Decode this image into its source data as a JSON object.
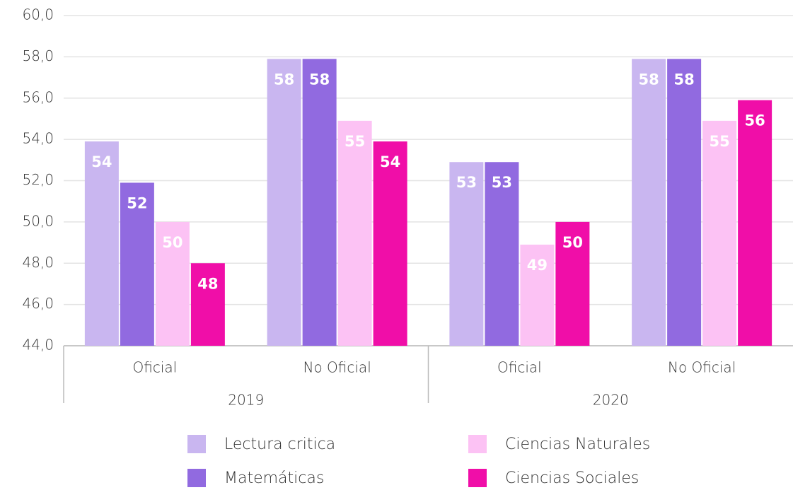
{
  "chart_data": {
    "type": "bar",
    "categories": [
      "Oficial",
      "No Oficial",
      "Oficial",
      "No Oficial"
    ],
    "group_labels": [
      "2019",
      "2020"
    ],
    "series": [
      {
        "name": "Lectura critica",
        "color": "#c9b6f0",
        "values": [
          53.9,
          57.9,
          52.9,
          57.9
        ],
        "value_labels": [
          "54",
          "58",
          "53",
          "58"
        ]
      },
      {
        "name": "Matemáticas",
        "color": "#916ae0",
        "values": [
          51.9,
          57.9,
          52.9,
          57.9
        ],
        "value_labels": [
          "52",
          "58",
          "53",
          "58"
        ]
      },
      {
        "name": "Ciencias Naturales",
        "color": "#fcc2f4",
        "values": [
          50.0,
          54.9,
          48.9,
          54.9
        ],
        "value_labels": [
          "50",
          "55",
          "49",
          "55"
        ]
      },
      {
        "name": "Ciencias Sociales",
        "color": "#f00ea8",
        "values": [
          48.0,
          53.9,
          50.0,
          55.9
        ],
        "value_labels": [
          "48",
          "54",
          "50",
          "56"
        ]
      }
    ],
    "ylim": [
      44,
      60
    ],
    "yticks": [
      {
        "value": 44,
        "label": "44,0"
      },
      {
        "value": 46,
        "label": "46,0"
      },
      {
        "value": 48,
        "label": "48,0"
      },
      {
        "value": 50,
        "label": "50,0"
      },
      {
        "value": 52,
        "label": "52,0"
      },
      {
        "value": 54,
        "label": "54,0"
      },
      {
        "value": 56,
        "label": "56,0"
      },
      {
        "value": 58,
        "label": "58,0"
      },
      {
        "value": 60,
        "label": "60,0"
      }
    ],
    "grid": true
  }
}
